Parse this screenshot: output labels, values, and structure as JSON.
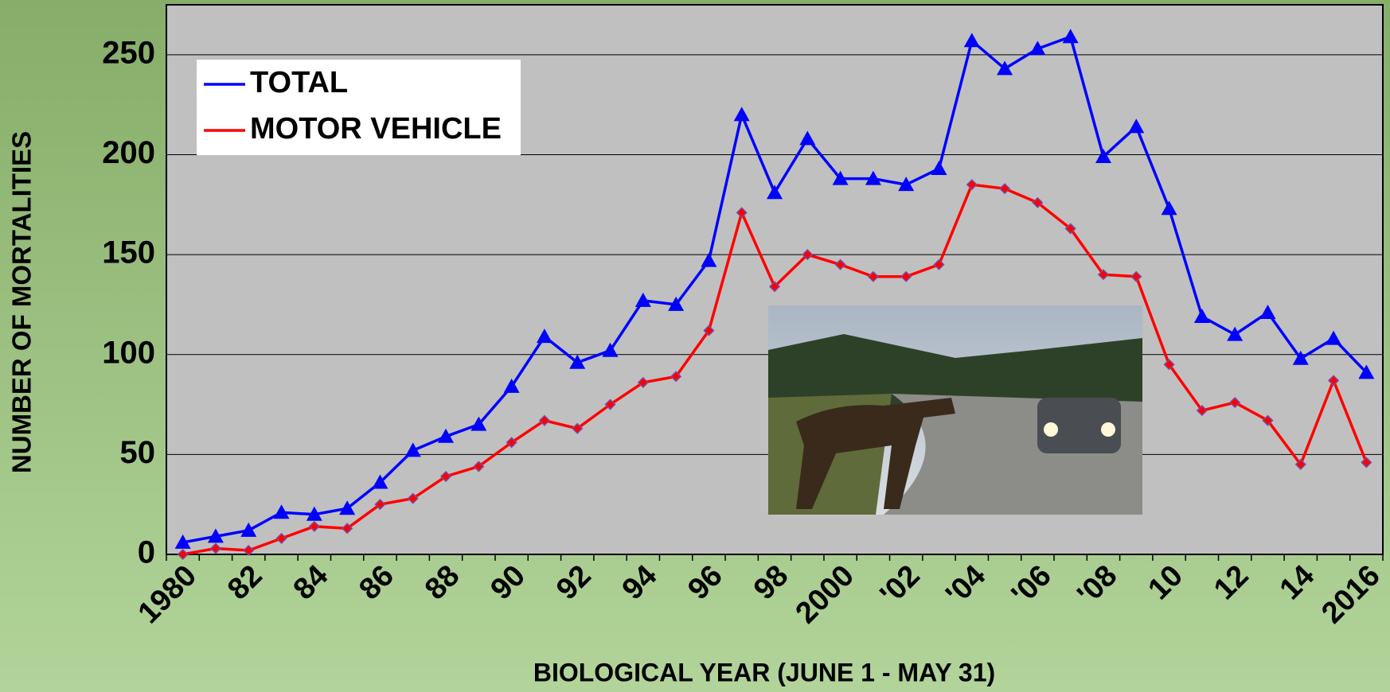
{
  "chart_data": {
    "type": "line",
    "xlabel": "BIOLOGICAL YEAR (JUNE 1 - MAY 31)",
    "ylabel": "NUMBER OF MORTALITIES",
    "categories": [
      "1980",
      null,
      "82",
      null,
      "84",
      null,
      "86",
      null,
      "88",
      null,
      "90",
      null,
      "92",
      null,
      "94",
      null,
      "96",
      null,
      "98",
      null,
      "2000",
      null,
      "'02",
      null,
      "'04",
      null,
      "'06",
      null,
      "'08",
      null,
      "10",
      null,
      "12",
      null,
      "14",
      null,
      "2016"
    ],
    "series": [
      {
        "name": "TOTAL",
        "color": "#0000ff",
        "marker": "triangle",
        "values": [
          6,
          9,
          12,
          21,
          20,
          23,
          36,
          52,
          59,
          65,
          84,
          109,
          96,
          102,
          127,
          125,
          147,
          220,
          181,
          208,
          188,
          188,
          185,
          193,
          257,
          243,
          253,
          259,
          199,
          214,
          173,
          119,
          110,
          121,
          98,
          108,
          91
        ]
      },
      {
        "name": "MOTOR VEHICLE",
        "color": "#ff0000",
        "marker": "diamond",
        "values": [
          0,
          3,
          2,
          8,
          14,
          13,
          25,
          28,
          39,
          44,
          56,
          67,
          63,
          75,
          86,
          89,
          112,
          171,
          134,
          150,
          145,
          139,
          139,
          145,
          185,
          183,
          176,
          163,
          140,
          139,
          95,
          72,
          76,
          67,
          45,
          87,
          46
        ]
      }
    ],
    "ylim": [
      0,
      275
    ],
    "yticks": [
      0,
      50,
      100,
      150,
      200,
      250
    ],
    "grid": true,
    "legend": "top-left"
  }
}
